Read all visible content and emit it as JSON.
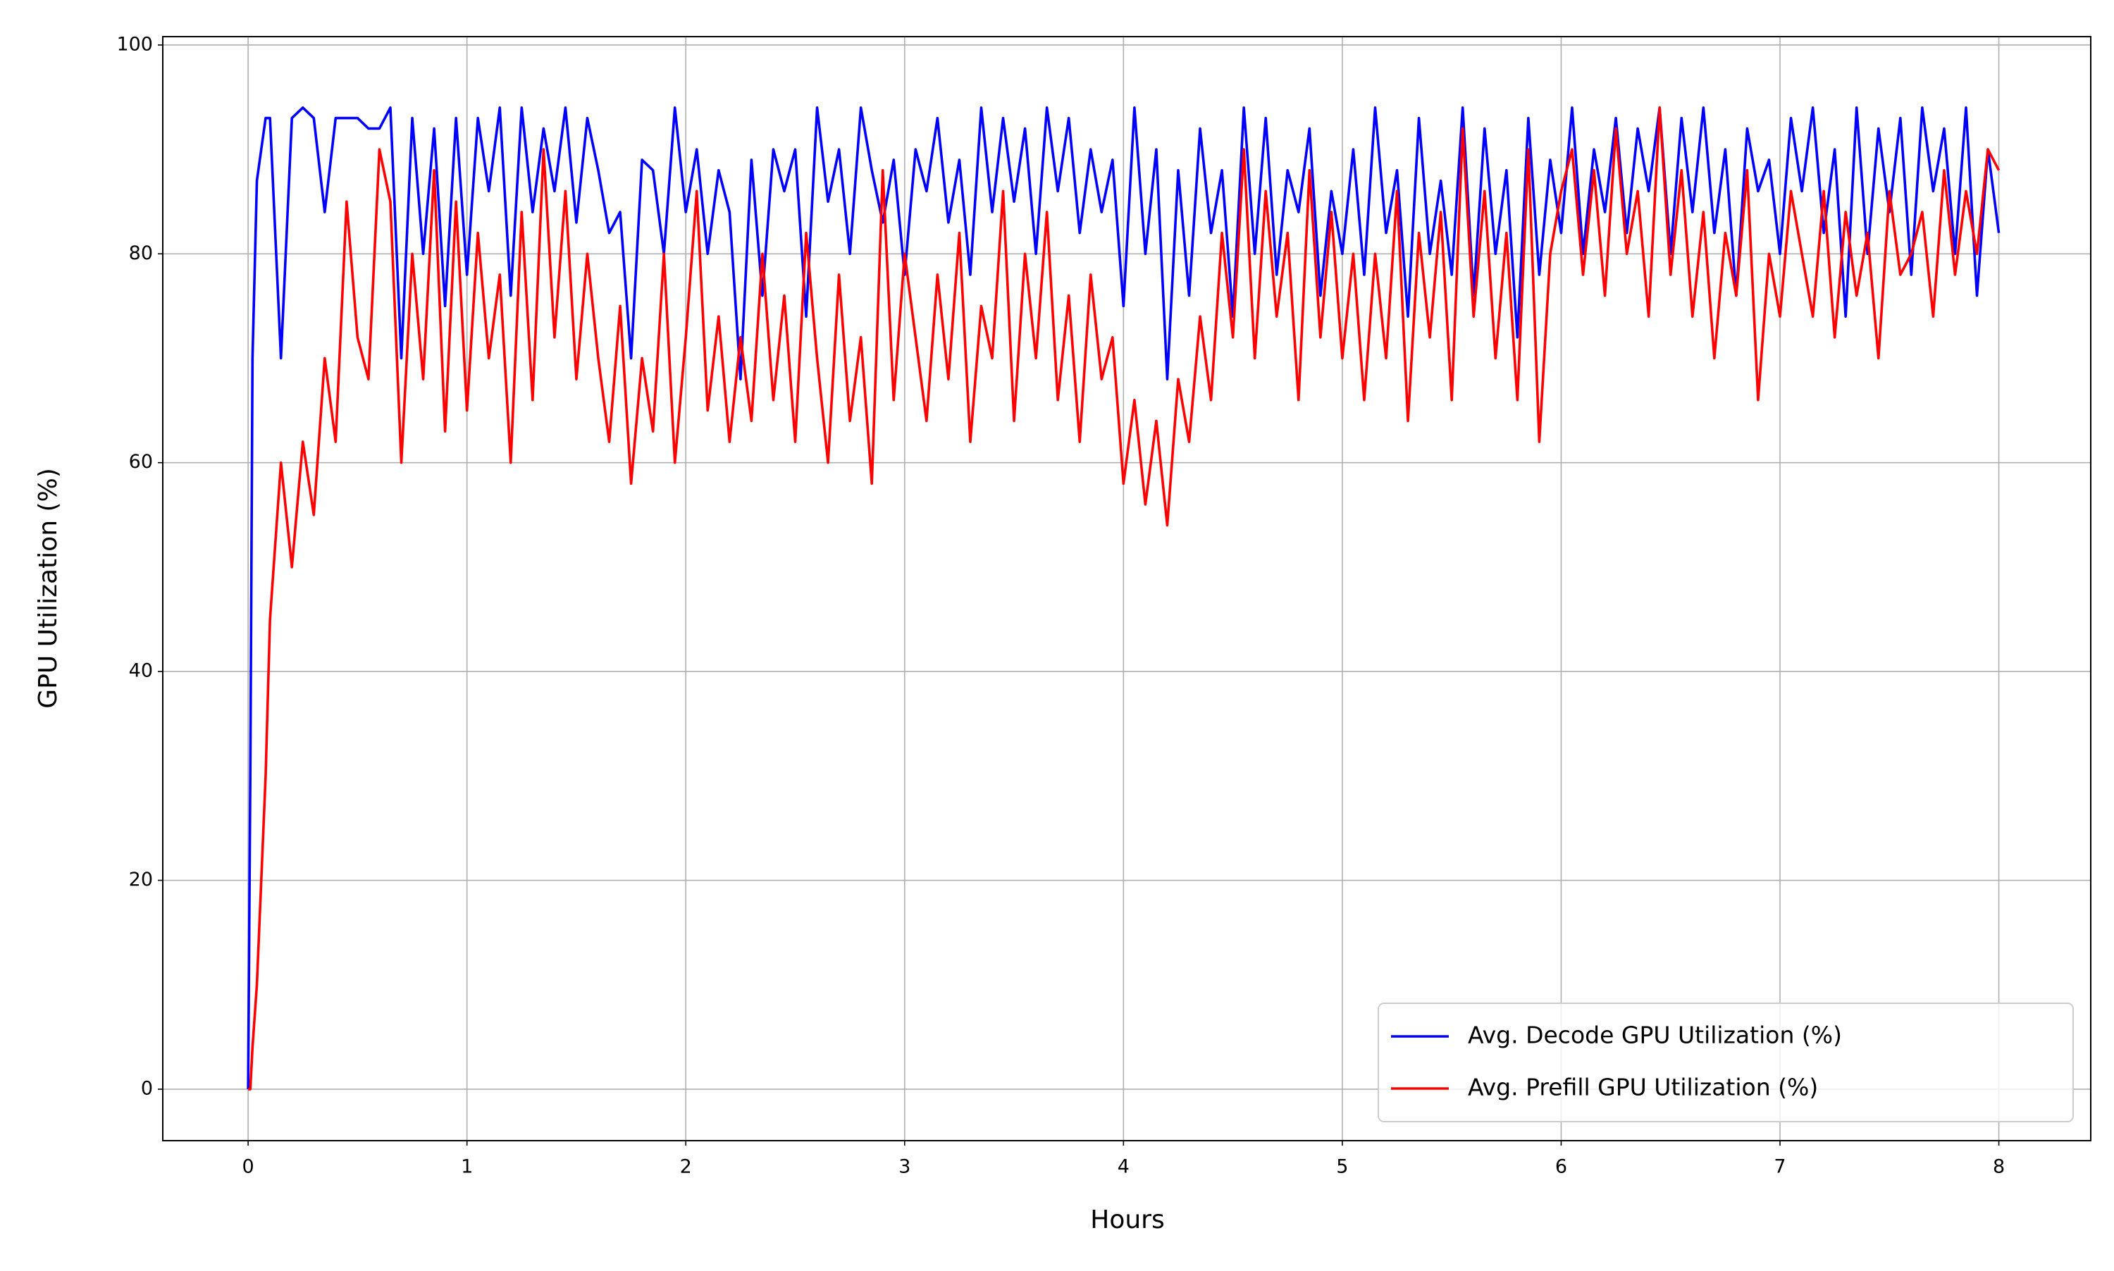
{
  "chart_data": {
    "type": "line",
    "xlabel": "Hours",
    "ylabel": "GPU Utilization (%)",
    "x": [
      0,
      0.01,
      0.02,
      0.04,
      0.06,
      0.08,
      0.1,
      0.15,
      0.2,
      0.25,
      0.3,
      0.35,
      0.4,
      0.45,
      0.5,
      0.55,
      0.6,
      0.65,
      0.7,
      0.75,
      0.8,
      0.85,
      0.9,
      0.95,
      1.0,
      1.05,
      1.1,
      1.15,
      1.2,
      1.25,
      1.3,
      1.35,
      1.4,
      1.45,
      1.5,
      1.55,
      1.6,
      1.65,
      1.7,
      1.75,
      1.8,
      1.85,
      1.9,
      1.95,
      2.0,
      2.05,
      2.1,
      2.15,
      2.2,
      2.25,
      2.3,
      2.35,
      2.4,
      2.45,
      2.5,
      2.55,
      2.6,
      2.65,
      2.7,
      2.75,
      2.8,
      2.85,
      2.9,
      2.95,
      3.0,
      3.05,
      3.1,
      3.15,
      3.2,
      3.25,
      3.3,
      3.35,
      3.4,
      3.45,
      3.5,
      3.55,
      3.6,
      3.65,
      3.7,
      3.75,
      3.8,
      3.85,
      3.9,
      3.95,
      4.0,
      4.05,
      4.1,
      4.15,
      4.2,
      4.25,
      4.3,
      4.35,
      4.4,
      4.45,
      4.5,
      4.55,
      4.6,
      4.65,
      4.7,
      4.75,
      4.8,
      4.85,
      4.9,
      4.95,
      5.0,
      5.05,
      5.1,
      5.15,
      5.2,
      5.25,
      5.3,
      5.35,
      5.4,
      5.45,
      5.5,
      5.55,
      5.6,
      5.65,
      5.7,
      5.75,
      5.8,
      5.85,
      5.9,
      5.95,
      6.0,
      6.05,
      6.1,
      6.15,
      6.2,
      6.25,
      6.3,
      6.35,
      6.4,
      6.45,
      6.5,
      6.55,
      6.6,
      6.65,
      6.7,
      6.75,
      6.8,
      6.85,
      6.9,
      6.95,
      7.0,
      7.05,
      7.1,
      7.15,
      7.2,
      7.25,
      7.3,
      7.35,
      7.4,
      7.45,
      7.5,
      7.55,
      7.6,
      7.65,
      7.7,
      7.75,
      7.8,
      7.85,
      7.9,
      7.95,
      8.0
    ],
    "series": [
      {
        "name": "Avg. Decode GPU Utilization (%)",
        "color": "#0000ff",
        "values": [
          0,
          30,
          70,
          87,
          90,
          93,
          93,
          70,
          93,
          94,
          93,
          84,
          93,
          93,
          93,
          92,
          92,
          94,
          70,
          93,
          80,
          92,
          75,
          93,
          78,
          93,
          86,
          94,
          76,
          94,
          84,
          92,
          86,
          94,
          83,
          93,
          88,
          82,
          84,
          70,
          89,
          88,
          80,
          94,
          84,
          90,
          80,
          88,
          84,
          68,
          89,
          76,
          90,
          86,
          90,
          74,
          94,
          85,
          90,
          80,
          94,
          88,
          83,
          89,
          78,
          90,
          86,
          93,
          83,
          89,
          78,
          94,
          84,
          93,
          85,
          92,
          80,
          94,
          86,
          93,
          82,
          90,
          84,
          89,
          75,
          94,
          80,
          90,
          68,
          88,
          76,
          92,
          82,
          88,
          74,
          94,
          80,
          93,
          78,
          88,
          84,
          92,
          76,
          86,
          80,
          90,
          78,
          94,
          82,
          88,
          74,
          93,
          80,
          87,
          78,
          94,
          76,
          92,
          80,
          88,
          72,
          93,
          78,
          89,
          82,
          94,
          80,
          90,
          84,
          93,
          82,
          92,
          86,
          94,
          80,
          93,
          84,
          94,
          82,
          90,
          76,
          92,
          86,
          89,
          80,
          93,
          86,
          94,
          82,
          90,
          74,
          94,
          80,
          92,
          84,
          93,
          78,
          94,
          86,
          92,
          80,
          94,
          76,
          90,
          82
        ]
      },
      {
        "name": "Avg. Prefill GPU Utilization (%)",
        "color": "#ff0000",
        "values": [
          0,
          0,
          4,
          10,
          20,
          30,
          45,
          60,
          50,
          62,
          55,
          70,
          62,
          85,
          72,
          68,
          90,
          85,
          60,
          80,
          68,
          88,
          63,
          85,
          65,
          82,
          70,
          78,
          60,
          84,
          66,
          90,
          72,
          86,
          68,
          80,
          70,
          62,
          75,
          58,
          70,
          63,
          80,
          60,
          72,
          86,
          65,
          74,
          62,
          72,
          64,
          80,
          66,
          76,
          62,
          82,
          70,
          60,
          78,
          64,
          72,
          58,
          88,
          66,
          80,
          72,
          64,
          78,
          68,
          82,
          62,
          75,
          70,
          86,
          64,
          80,
          70,
          84,
          66,
          76,
          62,
          78,
          68,
          72,
          58,
          66,
          56,
          64,
          54,
          68,
          62,
          74,
          66,
          82,
          72,
          90,
          70,
          86,
          74,
          82,
          66,
          88,
          72,
          84,
          70,
          80,
          66,
          80,
          70,
          86,
          64,
          82,
          72,
          84,
          66,
          92,
          74,
          86,
          70,
          82,
          66,
          90,
          62,
          80,
          86,
          90,
          78,
          88,
          76,
          92,
          80,
          86,
          74,
          94,
          78,
          88,
          74,
          84,
          70,
          82,
          76,
          88,
          66,
          80,
          74,
          86,
          80,
          74,
          86,
          72,
          84,
          76,
          82,
          70,
          86,
          78,
          80,
          84,
          74,
          88,
          78,
          86,
          80,
          90,
          88
        ]
      }
    ],
    "xlim": [
      -0.39,
      8.42
    ],
    "xticks": [
      0,
      1,
      2,
      3,
      4,
      5,
      6,
      7,
      8
    ],
    "ylim": [
      -4.93,
      100.8
    ],
    "yticks": [
      0,
      20,
      40,
      60,
      80,
      100
    ],
    "grid": true,
    "legend": "lower right"
  }
}
